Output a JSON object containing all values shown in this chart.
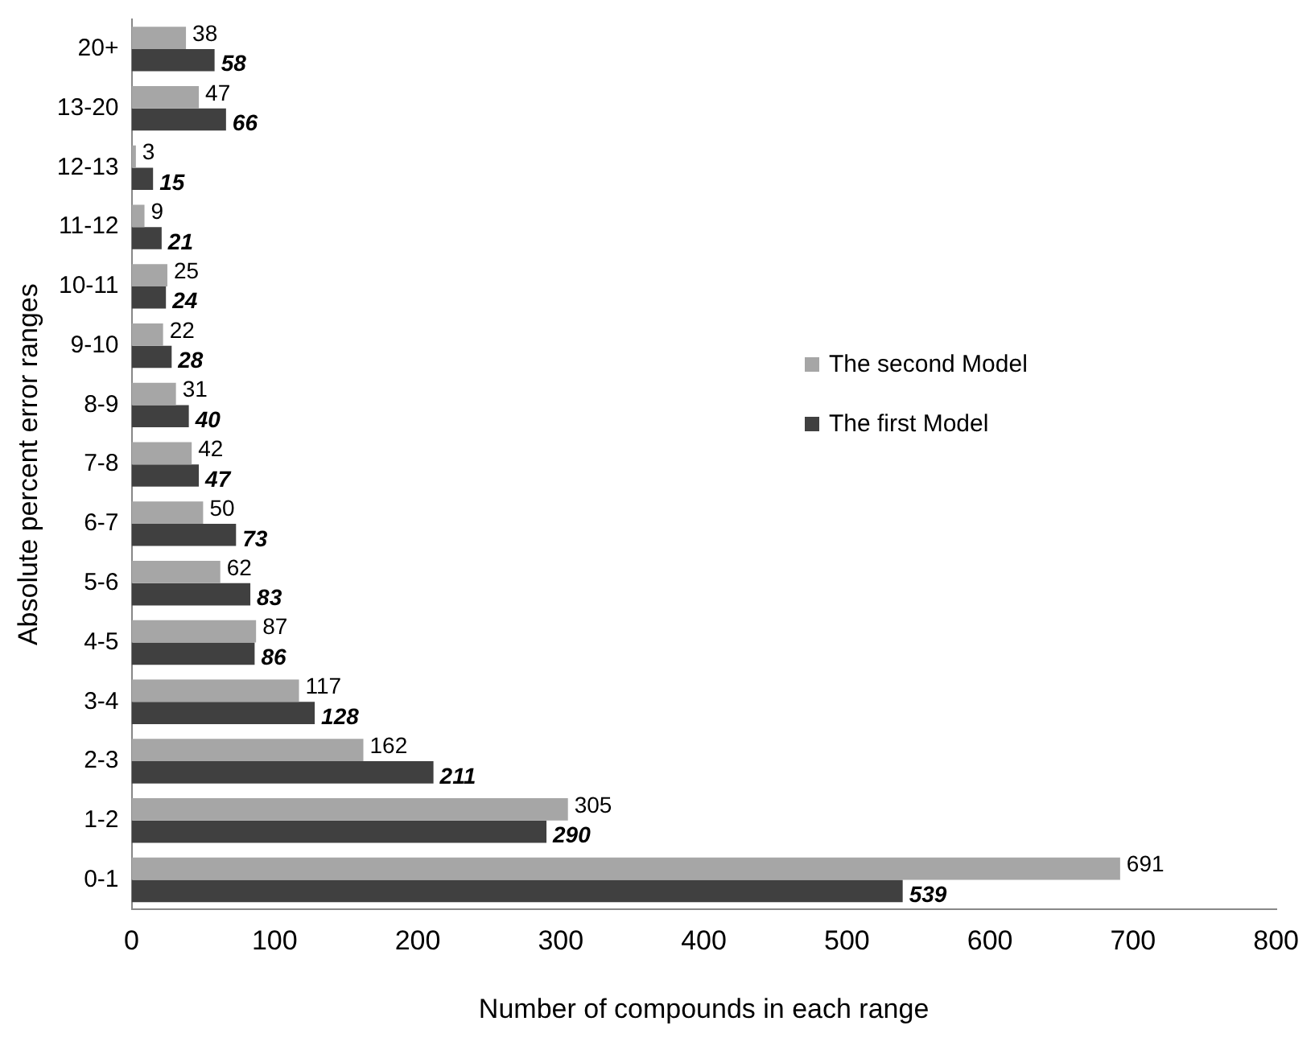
{
  "chart_data": {
    "type": "bar",
    "orientation": "horizontal",
    "xlabel": "Number of compounds in each range",
    "ylabel": "Absolute percent error ranges",
    "categories": [
      "20+",
      "13-20",
      "12-13",
      "11-12",
      "10-11",
      "9-10",
      "8-9",
      "7-8",
      "6-7",
      "5-6",
      "4-5",
      "3-4",
      "2-3",
      "1-2",
      "0-1"
    ],
    "series": [
      {
        "name": "The second Model",
        "color": "#a6a6a6",
        "values": [
          38,
          47,
          3,
          9,
          25,
          22,
          31,
          42,
          50,
          62,
          87,
          117,
          162,
          305,
          691
        ]
      },
      {
        "name": "The first Model",
        "color": "#404040",
        "values": [
          58,
          66,
          15,
          21,
          24,
          28,
          40,
          47,
          73,
          83,
          86,
          128,
          211,
          290,
          539
        ]
      }
    ],
    "xlim": [
      0,
      800
    ],
    "xticks": [
      0,
      100,
      200,
      300,
      400,
      500,
      600,
      700,
      800
    ],
    "grid": false,
    "legend": "right",
    "data_labels": true
  }
}
